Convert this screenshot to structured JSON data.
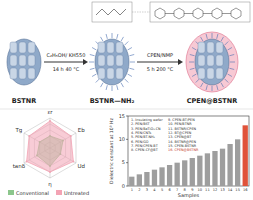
{
  "scheme": {
    "steps": [
      {
        "label": "BSTNR"
      },
      {
        "label": "BSTNR—NH₂"
      },
      {
        "label": "CPEN@BSTNR"
      }
    ],
    "reactions": [
      {
        "reagents": "C₂H₅OH/ KH550",
        "conditions": "14 h 40 °C"
      },
      {
        "reagents": "CPEN/NMP",
        "conditions": "5 h 200 °C"
      }
    ]
  },
  "chart_data": [
    {
      "type": "radar",
      "categories": [
        "εr",
        "Eb",
        "Ud",
        "η",
        "tanδ",
        "Tg"
      ],
      "series": [
        {
          "name": "Conventional",
          "color": "#8cc68c",
          "values": [
            2,
            2.5,
            2,
            3,
            2.5,
            2
          ]
        },
        {
          "name": "Untreated",
          "color": "#f3a3b4",
          "values": [
            4.5,
            4,
            4.5,
            4,
            4.5,
            4
          ]
        }
      ],
      "ylim": [
        0,
        5
      ],
      "yticks": [
        1,
        2,
        3,
        4,
        5
      ],
      "tick_labels": false,
      "legend": "bottom"
    },
    {
      "type": "bar",
      "x_label": "Samples",
      "y_label": "Dielectric constant at 10³ Hz",
      "categories": [
        "1",
        "2",
        "3",
        "4",
        "5",
        "6",
        "7",
        "8",
        "9",
        "10",
        "11",
        "12",
        "13",
        "14",
        "15",
        "16"
      ],
      "values": [
        2,
        2.5,
        3,
        3.5,
        4,
        4.5,
        5,
        5.5,
        6,
        6.5,
        7,
        7.5,
        8,
        9,
        10,
        13
      ],
      "colors": [
        "#9e9e9e",
        "#9e9e9e",
        "#9e9e9e",
        "#9e9e9e",
        "#9e9e9e",
        "#9e9e9e",
        "#9e9e9e",
        "#9e9e9e",
        "#9e9e9e",
        "#9e9e9e",
        "#9e9e9e",
        "#9e9e9e",
        "#9e9e9e",
        "#9e9e9e",
        "#9e9e9e",
        "#e0533a"
      ],
      "ylim": [
        0,
        15
      ],
      "yticks": [
        0,
        5,
        10,
        15
      ],
      "annotations": [
        "1. Insulating wafer",
        "2. PEN/BST",
        "3. PEN/BaTiO₃-CN",
        "4. PEN/CNTs",
        "5. PEN/BT-NH₂",
        "6. PEN/GO",
        "7. PEN/CPEN-BT",
        "8. CPEN-CF@BT",
        "9. CPEN-BT/PEN",
        "10. PEN/BTNR",
        "11. BSTNR/CPEN",
        "12. BT@CPEN",
        "13. CPEN@BT",
        "14. BSTNR@PEN",
        "15. CPEN-BSTNR",
        "16. CPEN@BSTNR"
      ]
    }
  ]
}
